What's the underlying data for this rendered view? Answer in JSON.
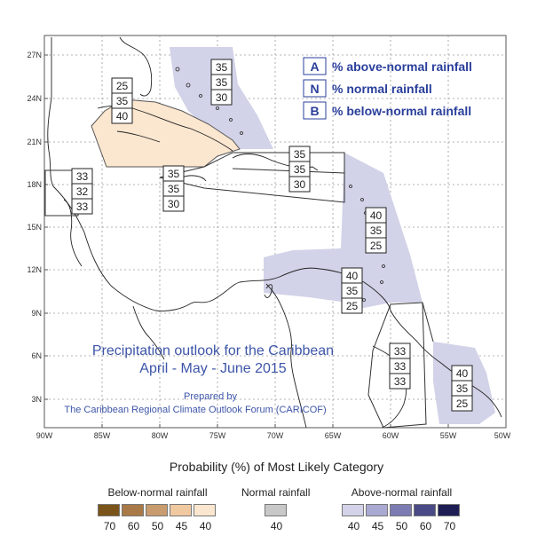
{
  "map": {
    "title_line1": "Precipitation outlook for the Caribbean",
    "title_line2": "April - May - June 2015",
    "prepared_by": "Prepared by",
    "prepared_org": "The Caribbean Regional Climate Outlook Forum (CARICOF)",
    "lat_labels": [
      "27N",
      "24N",
      "21N",
      "18N",
      "15N",
      "12N",
      "9N",
      "6N",
      "3N"
    ],
    "lon_labels": [
      "90W",
      "85W",
      "80W",
      "75W",
      "70W",
      "65W",
      "60W",
      "55W",
      "50W"
    ],
    "key": [
      {
        "letter": "A",
        "text": "% above-normal rainfall"
      },
      {
        "letter": "N",
        "text": "% normal rainfall"
      },
      {
        "letter": "B",
        "text": "% below-normal rainfall"
      }
    ],
    "zones": [
      {
        "name": "bahamas",
        "values": [
          "35",
          "35",
          "30"
        ]
      },
      {
        "name": "cuba",
        "values": [
          "25",
          "35",
          "40"
        ]
      },
      {
        "name": "belize",
        "values": [
          "33",
          "32",
          "33"
        ]
      },
      {
        "name": "jamaica",
        "values": [
          "35",
          "35",
          "30"
        ]
      },
      {
        "name": "hispaniola-pr",
        "values": [
          "35",
          "35",
          "30"
        ]
      },
      {
        "name": "leeward",
        "values": [
          "40",
          "35",
          "25"
        ]
      },
      {
        "name": "windward",
        "values": [
          "40",
          "35",
          "25"
        ]
      },
      {
        "name": "guyana",
        "values": [
          "33",
          "33",
          "33"
        ]
      },
      {
        "name": "suriname-fg",
        "values": [
          "40",
          "35",
          "25"
        ]
      }
    ],
    "colors": {
      "above_normal_40": "#d2d2e8",
      "below_normal_40": "#fbe6cf",
      "title": "#3d55a8",
      "key_text": "#2a3f9b"
    }
  },
  "legend": {
    "title": "Probability (%) of Most Likely Category",
    "below": {
      "label": "Below-normal rainfall",
      "values": [
        "70",
        "60",
        "50",
        "45",
        "40"
      ],
      "colors": [
        "#7a5418",
        "#a97a47",
        "#c89c6e",
        "#f0c9a1",
        "#fbe6cf"
      ]
    },
    "normal": {
      "label": "Normal rainfall",
      "values": [
        "40"
      ],
      "colors": [
        "#c8c8c8"
      ]
    },
    "above": {
      "label": "Above-normal rainfall",
      "values": [
        "40",
        "45",
        "50",
        "60",
        "70"
      ],
      "colors": [
        "#d2d2e8",
        "#a9a9d2",
        "#7c7cb3",
        "#4a4a86",
        "#1e1e55"
      ]
    }
  }
}
